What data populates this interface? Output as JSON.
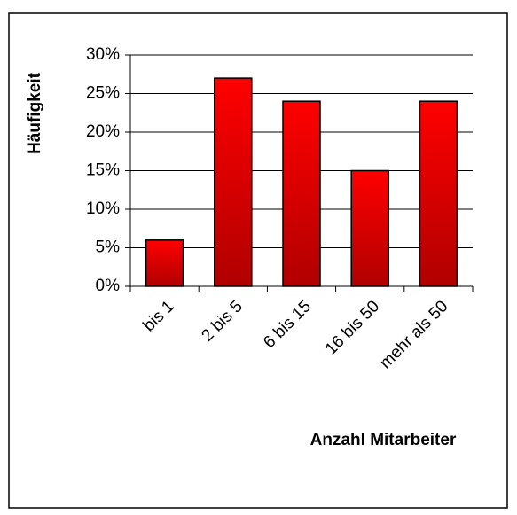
{
  "chart_data": {
    "type": "bar",
    "categories": [
      "bis 1",
      "2 bis 5",
      "6 bis 15",
      "16 bis 50",
      "mehr als 50"
    ],
    "values": [
      6,
      27,
      24,
      15,
      24
    ],
    "color": "#ff0000",
    "y_label": "Häufigkeit",
    "x_label": "Anzahl Mitarbeiter",
    "ylim": [
      0,
      30
    ],
    "yticks": [
      {
        "value": 0,
        "label": "0%"
      },
      {
        "value": 5,
        "label": "5%"
      },
      {
        "value": 10,
        "label": "10%"
      },
      {
        "value": 15,
        "label": "15%"
      },
      {
        "value": 20,
        "label": "20%"
      },
      {
        "value": 25,
        "label": "25%"
      },
      {
        "value": 30,
        "label": "30%"
      }
    ],
    "grid": true
  }
}
